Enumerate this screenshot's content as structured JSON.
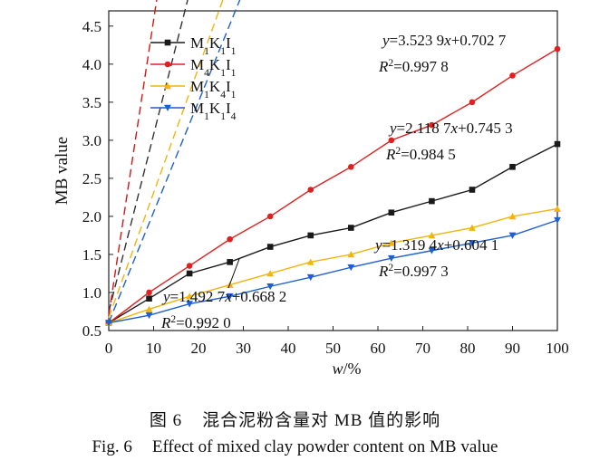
{
  "chart_data": {
    "type": "line",
    "xlabel": "w/%",
    "ylabel": "MB value",
    "xlim": [
      0,
      100
    ],
    "ylim": [
      0.5,
      4.7
    ],
    "xticks": [
      0,
      10,
      20,
      30,
      40,
      50,
      60,
      70,
      80,
      90,
      100
    ],
    "yticks": [
      0.5,
      1.0,
      1.5,
      2.0,
      2.5,
      3.0,
      3.5,
      4.0,
      4.5
    ],
    "xtick_labels": [
      "0",
      "10",
      "20",
      "30",
      "40",
      "50",
      "60",
      "70",
      "80",
      "90",
      "100"
    ],
    "ytick_labels": [
      "0.5",
      "1.0",
      "1.5",
      "2.0",
      "2.5",
      "3.0",
      "3.5",
      "4.0",
      "4.5"
    ],
    "grid": false,
    "legend_position": "top-left",
    "x": [
      0,
      9,
      18,
      27,
      36,
      45,
      54,
      63,
      72,
      81,
      90,
      100
    ],
    "series": [
      {
        "name": "M1K1I1",
        "name_parts": [
          [
            "M",
            ""
          ],
          [
            "1",
            "sub"
          ],
          [
            "K",
            ""
          ],
          [
            "1",
            "sub"
          ],
          [
            "I",
            ""
          ],
          [
            "1",
            "sub"
          ]
        ],
        "color": "#1a1a1a",
        "marker": "square",
        "values": [
          0.6,
          0.92,
          1.25,
          1.4,
          1.6,
          1.75,
          1.85,
          2.05,
          2.2,
          2.35,
          2.65,
          2.95
        ],
        "fit": {
          "slope": 2.1187,
          "intercept": 0.7453
        },
        "fit_dash_color": "#333333"
      },
      {
        "name": "M4K1I1",
        "name_parts": [
          [
            "M",
            ""
          ],
          [
            "4",
            "sub"
          ],
          [
            "K",
            ""
          ],
          [
            "1",
            "sub"
          ],
          [
            "I",
            ""
          ],
          [
            "1",
            "sub"
          ]
        ],
        "color": "#e02020",
        "marker": "circle",
        "values": [
          0.6,
          1.0,
          1.35,
          1.7,
          2.0,
          2.35,
          2.65,
          3.0,
          3.2,
          3.5,
          3.85,
          4.2
        ],
        "fit": {
          "slope": 3.5239,
          "intercept": 0.7027
        },
        "fit_dash_color": "#d01818"
      },
      {
        "name": "M1K4I1",
        "name_parts": [
          [
            "M",
            ""
          ],
          [
            "1",
            "sub"
          ],
          [
            "K",
            ""
          ],
          [
            "4",
            "sub"
          ],
          [
            "I",
            ""
          ],
          [
            "1",
            "sub"
          ]
        ],
        "color": "#f2b40e",
        "marker": "triangle-up",
        "values": [
          0.6,
          0.78,
          0.95,
          1.1,
          1.25,
          1.4,
          1.5,
          1.65,
          1.75,
          1.85,
          2.0,
          2.1
        ],
        "fit": {
          "slope": 1.4927,
          "intercept": 0.6682
        },
        "fit_dash_color": "#f2b40e"
      },
      {
        "name": "M1K1I4",
        "name_parts": [
          [
            "M",
            ""
          ],
          [
            "1",
            "sub"
          ],
          [
            "K",
            ""
          ],
          [
            "1",
            "sub"
          ],
          [
            "I",
            ""
          ],
          [
            "4",
            "sub"
          ]
        ],
        "color": "#1f5fd0",
        "marker": "triangle-down",
        "values": [
          0.6,
          0.7,
          0.85,
          0.95,
          1.08,
          1.2,
          1.33,
          1.45,
          1.55,
          1.65,
          1.75,
          1.95
        ],
        "fit": {
          "slope": 1.3194,
          "intercept": 0.6041
        },
        "fit_dash_color": "#1f5fd0"
      }
    ],
    "annotations": [
      {
        "id": "eq-red",
        "eq": "y=3.523 9x+0.702 7",
        "r2": "R2=0.997 8",
        "eq_parts": [
          [
            "y",
            "i"
          ],
          [
            "=3.523 9",
            ""
          ],
          [
            "x",
            "i"
          ],
          [
            "+0.702 7",
            ""
          ]
        ],
        "r2_parts": [
          [
            "R",
            "i"
          ],
          [
            "2",
            "sup"
          ],
          [
            "=0.997 8",
            ""
          ]
        ]
      },
      {
        "id": "eq-black",
        "eq": "y=2.118 7x+0.745 3",
        "r2": "R2=0.984 5",
        "eq_parts": [
          [
            "y",
            "i"
          ],
          [
            "=2.118 7",
            ""
          ],
          [
            "x",
            "i"
          ],
          [
            "+0.745 3",
            ""
          ]
        ],
        "r2_parts": [
          [
            "R",
            "i"
          ],
          [
            "2",
            "sup"
          ],
          [
            "=0.984 5",
            ""
          ]
        ]
      },
      {
        "id": "eq-blue",
        "eq": "y=1.319 4x+0.604 1",
        "r2": "R2=0.997 3",
        "eq_parts": [
          [
            "y",
            "i"
          ],
          [
            "=1.319 4",
            ""
          ],
          [
            "x",
            "i"
          ],
          [
            "+0.604 1",
            ""
          ]
        ],
        "r2_parts": [
          [
            "R",
            "i"
          ],
          [
            "2",
            "sup"
          ],
          [
            "=0.997 3",
            ""
          ]
        ]
      },
      {
        "id": "eq-yellow",
        "eq": "y=1.492 7x+0.668 2",
        "r2": "R2=0.992 0",
        "eq_parts": [
          [
            "y",
            "i"
          ],
          [
            "=1.492 7",
            ""
          ],
          [
            "x",
            "i"
          ],
          [
            "+0.668 2",
            ""
          ]
        ],
        "r2_parts": [
          [
            "R",
            "i"
          ],
          [
            "2",
            "sup"
          ],
          [
            "=0.992 0",
            ""
          ]
        ]
      }
    ]
  },
  "caption": {
    "cn_num": "图 6",
    "cn_text": "混合泥粉含量对 MB 值的影响",
    "en_num": "Fig. 6",
    "en_text": "Effect of mixed clay powder content on MB value"
  }
}
